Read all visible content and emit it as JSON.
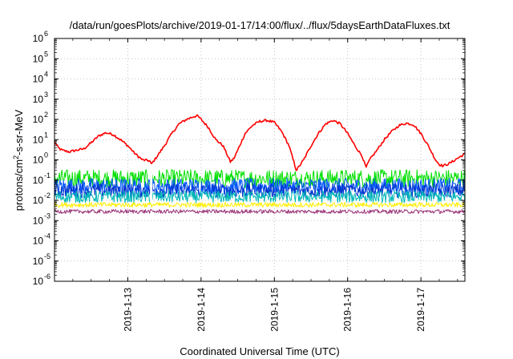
{
  "chart_data": {
    "type": "line",
    "title": "/data/run/goesPlots/archive/2019-01-17/14:00/flux/../flux/5daysEarthDataFluxes.txt",
    "xlabel": "Coordinated Universal Time (UTC)",
    "ylabel_parts": [
      "protons/cm",
      "2",
      "-s-sr-MeV"
    ],
    "y_scale": "log",
    "ylim": [
      1e-06,
      1000000.0
    ],
    "xlim": [
      0,
      5.6
    ],
    "x_unit": "days since 2019-01-12 00:00 UTC",
    "grid": true,
    "x_ticks": [
      {
        "x": 1,
        "label": "2019-1-13"
      },
      {
        "x": 2,
        "label": "2019-1-14"
      },
      {
        "x": 3,
        "label": "2019-1-15"
      },
      {
        "x": 4,
        "label": "2019-1-16"
      },
      {
        "x": 5,
        "label": "2019-1-17"
      }
    ],
    "y_ticks": [
      {
        "exp": -6,
        "label": "10",
        "sup": "-6"
      },
      {
        "exp": -5,
        "label": "10",
        "sup": "-5"
      },
      {
        "exp": -4,
        "label": "10",
        "sup": "-4"
      },
      {
        "exp": -3,
        "label": "10",
        "sup": "-3"
      },
      {
        "exp": -2,
        "label": "10",
        "sup": "-2"
      },
      {
        "exp": -1,
        "label": "10",
        "sup": "-1"
      },
      {
        "exp": 0,
        "label": "10",
        "sup": "0"
      },
      {
        "exp": 1,
        "label": "10",
        "sup": "1"
      },
      {
        "exp": 2,
        "label": "10",
        "sup": "2"
      },
      {
        "exp": 3,
        "label": "10",
        "sup": "3"
      },
      {
        "exp": 4,
        "label": "10",
        "sup": "4"
      },
      {
        "exp": 5,
        "label": "10",
        "sup": "5"
      },
      {
        "exp": 6,
        "label": "10",
        "sup": "6"
      }
    ],
    "series": [
      {
        "color": "#ff0000",
        "width": 1.6,
        "x": [
          0,
          0.05,
          0.1,
          0.2,
          0.3,
          0.4,
          0.5,
          0.6,
          0.7,
          0.8,
          0.9,
          1.0,
          1.1,
          1.2,
          1.3,
          1.32,
          1.4,
          1.5,
          1.6,
          1.7,
          1.8,
          1.9,
          1.95,
          2.0,
          2.1,
          2.2,
          2.3,
          2.4,
          2.45,
          2.5,
          2.6,
          2.7,
          2.8,
          2.9,
          3.0,
          3.1,
          3.2,
          3.3,
          3.4,
          3.5,
          3.6,
          3.7,
          3.8,
          3.9,
          4.0,
          4.1,
          4.2,
          4.25,
          4.3,
          4.4,
          4.5,
          4.6,
          4.7,
          4.8,
          4.9,
          5.0,
          5.1,
          5.2,
          5.25,
          5.3,
          5.4,
          5.5,
          5.6
        ],
        "y": [
          8,
          4,
          3,
          2.5,
          3,
          3.5,
          7,
          15,
          22,
          18,
          10,
          5,
          2,
          1,
          0.9,
          0.6,
          1.5,
          5,
          20,
          60,
          100,
          140,
          150,
          100,
          40,
          10,
          5,
          0.8,
          1.2,
          3,
          20,
          50,
          80,
          90,
          70,
          25,
          5,
          0.3,
          1,
          5,
          20,
          60,
          90,
          60,
          20,
          5,
          1.5,
          0.4,
          1,
          3,
          10,
          25,
          50,
          65,
          55,
          20,
          5,
          1,
          0.6,
          0.5,
          0.7,
          1.2,
          2
        ]
      },
      {
        "color": "#00e000",
        "width": 1.0,
        "level": 0.12,
        "spread": 0.45
      },
      {
        "color": "#0055ff",
        "width": 1.0,
        "level": 0.05,
        "spread": 0.4
      },
      {
        "color": "#0033cc",
        "width": 1.0,
        "level": 0.03,
        "spread": 0.35
      },
      {
        "color": "#00b8b8",
        "width": 1.0,
        "level": 0.015,
        "spread": 0.3
      },
      {
        "color": "#ffee00",
        "width": 1.0,
        "level": 0.006,
        "spread": 0.12
      },
      {
        "color": "#993377",
        "width": 1.0,
        "level": 0.0028,
        "spread": 0.1
      }
    ]
  }
}
